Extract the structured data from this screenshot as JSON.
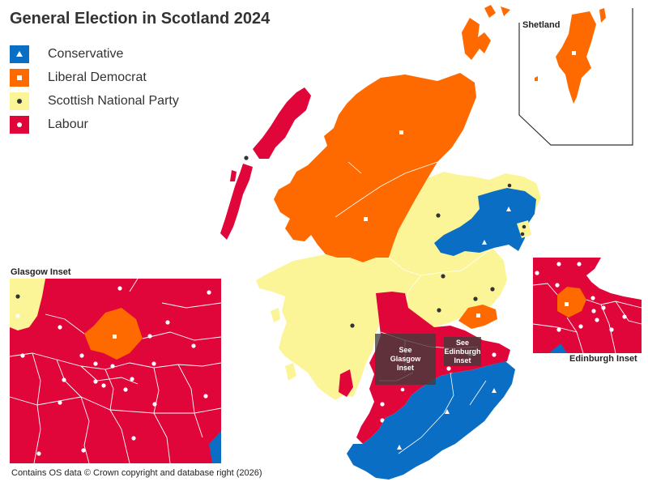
{
  "title": "General Election in Scotland 2024",
  "legend": [
    {
      "label": "Conservative",
      "color": "#0a6fc4",
      "marker": "triangle"
    },
    {
      "label": "Liberal Democrat",
      "color": "#ff6a00",
      "marker": "square"
    },
    {
      "label": "Scottish National Party",
      "color": "#fbf597",
      "marker": "dot"
    },
    {
      "label": "Labour",
      "color": "#e0063a",
      "marker": "dot-white"
    }
  ],
  "insets": {
    "shetland": "Shetland",
    "glasgow": "Glasgow Inset",
    "edinburgh": "Edinburgh Inset"
  },
  "see_glasgow": "See Glasgow Inset",
  "see_edinburgh": "See Edinburgh Inset",
  "credit": "Contains OS data © Crown copyright and database right (2026)",
  "colors": {
    "conservative": "#0a6fc4",
    "libdem": "#ff6a00",
    "snp": "#fbf597",
    "labour": "#e0063a",
    "border": "#ffffff"
  }
}
